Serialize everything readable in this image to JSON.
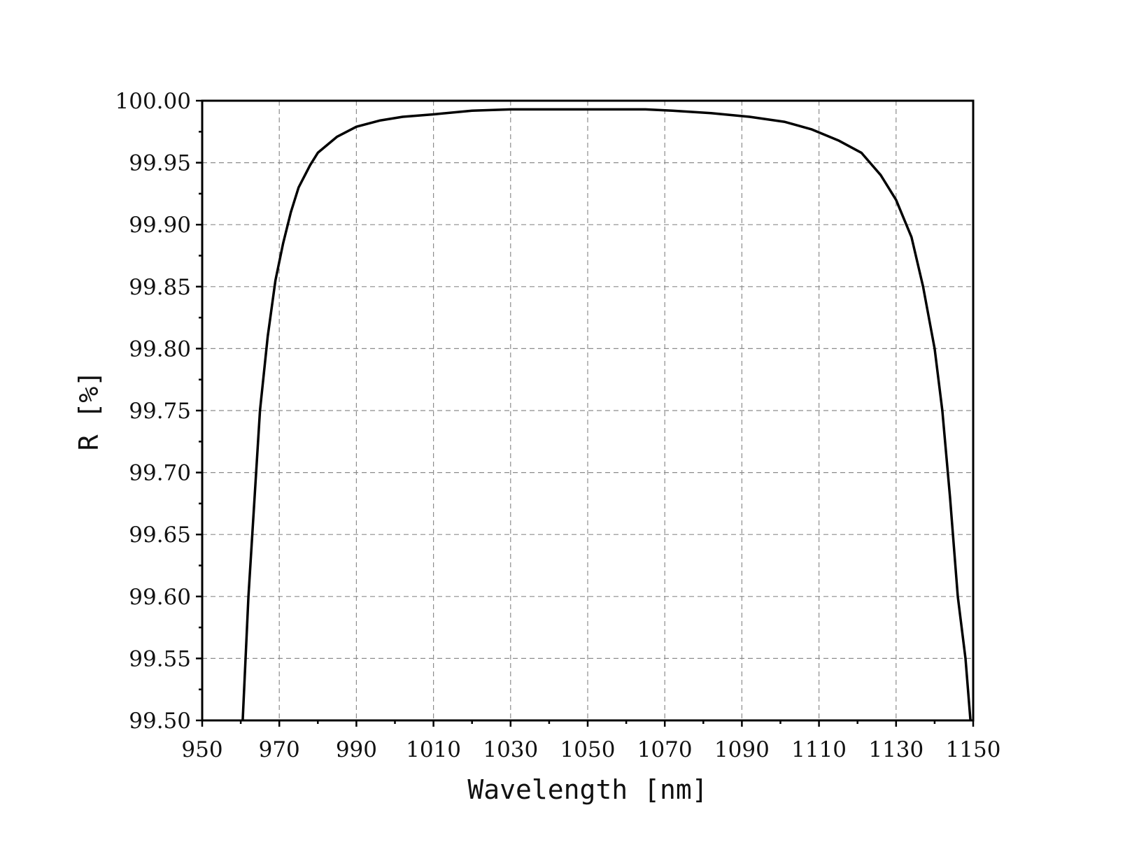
{
  "chart_data": {
    "type": "line",
    "xlabel": "Wavelength [nm]",
    "ylabel": "R [%]",
    "xlim": [
      950,
      1150
    ],
    "ylim": [
      99.5,
      100.0
    ],
    "x_ticks": [
      "950",
      "970",
      "990",
      "1010",
      "1030",
      "1050",
      "1070",
      "1090",
      "1110",
      "1130",
      "1150"
    ],
    "y_ticks": [
      "99.50",
      "99.55",
      "99.60",
      "99.65",
      "99.70",
      "99.75",
      "99.80",
      "99.85",
      "99.90",
      "99.95",
      "100.00"
    ],
    "grid": true,
    "line_color": "#000000",
    "series": [
      {
        "x": [
          960.5,
          962,
          963,
          965,
          967,
          969,
          971,
          973,
          975,
          978,
          980,
          985,
          990,
          996,
          1002,
          1010,
          1020,
          1030,
          1040,
          1050,
          1060,
          1065,
          1072,
          1082,
          1092,
          1101,
          1108,
          1115,
          1121,
          1126,
          1130,
          1134,
          1137,
          1140,
          1142,
          1144,
          1146,
          1148,
          1149.3
        ],
        "y": [
          99.5,
          99.6,
          99.65,
          99.75,
          99.81,
          99.855,
          99.885,
          99.91,
          99.93,
          99.948,
          99.958,
          99.971,
          99.979,
          99.984,
          99.987,
          99.989,
          99.992,
          99.993,
          99.993,
          99.993,
          99.993,
          99.993,
          99.992,
          99.99,
          99.987,
          99.983,
          99.977,
          99.968,
          99.958,
          99.94,
          99.92,
          99.89,
          99.85,
          99.8,
          99.75,
          99.68,
          99.6,
          99.55,
          99.5
        ]
      }
    ]
  }
}
